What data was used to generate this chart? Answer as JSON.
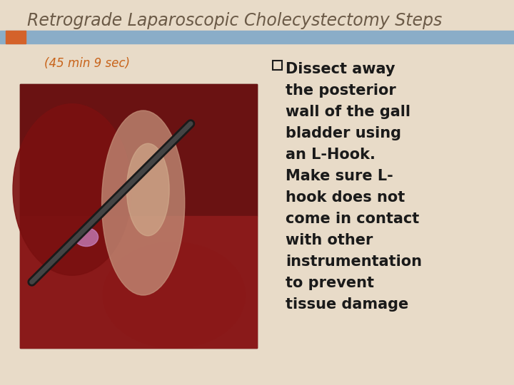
{
  "title": "Retrograde Laparoscopic Cholecystectomy Steps",
  "subtitle": "(45 min 9 sec)",
  "bullet_lines": [
    "Dissect away",
    "the posterior",
    "wall of the gall",
    "bladder using",
    "an L-Hook.",
    "Make sure L-",
    "hook does not",
    "come in contact",
    "with other",
    "instrumentation",
    "to prevent",
    "tissue damage"
  ],
  "bg_color": "#e8dbc8",
  "blue_bar_color": "#8aadc8",
  "orange_accent_color": "#d4622a",
  "title_color": "#6b5a47",
  "subtitle_color": "#c8631a",
  "bullet_color": "#1a1a1a",
  "title_fontsize": 17,
  "subtitle_fontsize": 12,
  "bullet_fontsize": 15,
  "fig_width": 7.2,
  "fig_height": 5.4
}
